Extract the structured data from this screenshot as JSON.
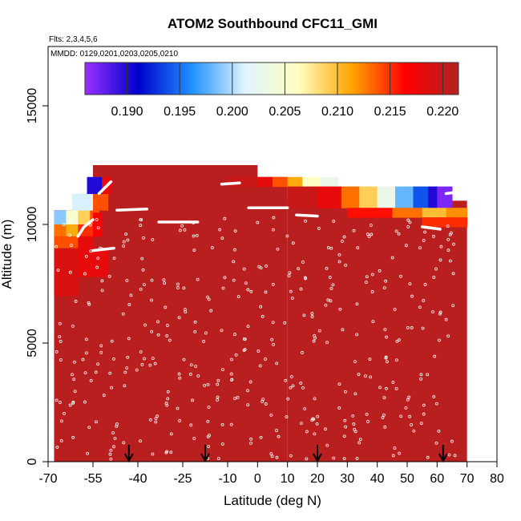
{
  "chart_data": {
    "type": "heatmap",
    "title": "ATOM2 Southbound CFC11_GMI",
    "flights_label": "Flts: 2,3,4,5,6",
    "dates_label": "MMDD: 0129,0201,0203,0205,0210",
    "xlabel": "Latitude (deg N)",
    "ylabel": "Altitude (m)",
    "xlim": [
      -70,
      80
    ],
    "ylim": [
      0,
      17500
    ],
    "x_ticks": [
      -70,
      -55,
      -40,
      -25,
      -10,
      0,
      10,
      20,
      30,
      40,
      50,
      60,
      70,
      80
    ],
    "y_ticks": [
      0,
      5000,
      10000,
      15000
    ],
    "colorbar": {
      "min": 0.186,
      "max": 0.2215,
      "ticks": [
        "0.190",
        "0.195",
        "0.200",
        "0.205",
        "0.210",
        "0.215",
        "0.220"
      ],
      "tick_values": [
        0.19,
        0.195,
        0.2,
        0.205,
        0.21,
        0.215,
        0.22
      ],
      "colors": [
        "#9b30ff",
        "#0000cd",
        "#1e90ff",
        "#e0f4ff",
        "#ffffc0",
        "#ffa500",
        "#ff0000",
        "#b22222"
      ]
    },
    "field_value": 0.221,
    "field_color": "#a31e1e",
    "regions": [
      {
        "x": [
          -55,
          0
        ],
        "alt": [
          0,
          12500
        ],
        "value": 0.221
      },
      {
        "x": [
          -10,
          10
        ],
        "alt": [
          0,
          12000
        ],
        "value": 0.221
      },
      {
        "x": [
          -68,
          -55
        ],
        "alt": [
          0,
          10600
        ],
        "value": 0.221
      },
      {
        "x": [
          10,
          70
        ],
        "alt": [
          0,
          11000
        ],
        "value": 0.221
      }
    ],
    "upper_gradient_segments": [
      {
        "x": [
          -10,
          0
        ],
        "alt": [
          11600,
          12000
        ],
        "value": 0.22
      },
      {
        "x": [
          0,
          5
        ],
        "alt": [
          11600,
          12000
        ],
        "value": 0.218
      },
      {
        "x": [
          5,
          10
        ],
        "alt": [
          11600,
          12000
        ],
        "value": 0.214
      },
      {
        "x": [
          10,
          15
        ],
        "alt": [
          11600,
          12000
        ],
        "value": 0.211
      },
      {
        "x": [
          15,
          21
        ],
        "alt": [
          11600,
          12000
        ],
        "value": 0.206
      },
      {
        "x": [
          21,
          27
        ],
        "alt": [
          11600,
          12000
        ],
        "value": 0.203
      },
      {
        "x": [
          10,
          20
        ],
        "alt": [
          10700,
          11600
        ],
        "value": 0.22
      },
      {
        "x": [
          20,
          28
        ],
        "alt": [
          10700,
          11600
        ],
        "value": 0.218
      },
      {
        "x": [
          28,
          34
        ],
        "alt": [
          10700,
          11600
        ],
        "value": 0.213
      },
      {
        "x": [
          34,
          40
        ],
        "alt": [
          10700,
          11600
        ],
        "value": 0.209
      },
      {
        "x": [
          40,
          46
        ],
        "alt": [
          10700,
          11600
        ],
        "value": 0.203
      },
      {
        "x": [
          46,
          52
        ],
        "alt": [
          10700,
          11600
        ],
        "value": 0.198
      },
      {
        "x": [
          52,
          57
        ],
        "alt": [
          10700,
          11600
        ],
        "value": 0.194
      },
      {
        "x": [
          57,
          60
        ],
        "alt": [
          10700,
          11600
        ],
        "value": 0.19
      },
      {
        "x": [
          60,
          65
        ],
        "alt": [
          10700,
          11600
        ],
        "value": 0.187
      },
      {
        "x": [
          30,
          45
        ],
        "alt": [
          10300,
          10700
        ],
        "value": 0.216
      },
      {
        "x": [
          45,
          55
        ],
        "alt": [
          10300,
          10700
        ],
        "value": 0.213
      },
      {
        "x": [
          55,
          63
        ],
        "alt": [
          10300,
          10700
        ],
        "value": 0.21
      },
      {
        "x": [
          63,
          70
        ],
        "alt": [
          10300,
          10700
        ],
        "value": 0.212
      },
      {
        "x": [
          55,
          70
        ],
        "alt": [
          9900,
          10300
        ],
        "value": 0.215
      },
      {
        "x": [
          -68,
          -64
        ],
        "alt": [
          10000,
          10600
        ],
        "value": 0.199
      },
      {
        "x": [
          -64,
          -60
        ],
        "alt": [
          10000,
          10600
        ],
        "value": 0.205
      },
      {
        "x": [
          -60,
          -56
        ],
        "alt": [
          10000,
          10600
        ],
        "value": 0.209
      },
      {
        "x": [
          -56,
          -53
        ],
        "alt": [
          10000,
          10600
        ],
        "value": 0.214
      },
      {
        "x": [
          -68,
          -64
        ],
        "alt": [
          9500,
          10000
        ],
        "value": 0.213
      },
      {
        "x": [
          -64,
          -60
        ],
        "alt": [
          9500,
          10000
        ],
        "value": 0.211
      },
      {
        "x": [
          -60,
          -55
        ],
        "alt": [
          9500,
          10000
        ],
        "value": 0.215
      },
      {
        "x": [
          -55,
          -52
        ],
        "alt": [
          9500,
          10500
        ],
        "value": 0.217
      },
      {
        "x": [
          -68,
          -60
        ],
        "alt": [
          9000,
          9500
        ],
        "value": 0.214
      },
      {
        "x": [
          -60,
          -55
        ],
        "alt": [
          9000,
          9500
        ],
        "value": 0.218
      },
      {
        "x": [
          -62,
          -55
        ],
        "alt": [
          10600,
          11300
        ],
        "value": 0.201
      },
      {
        "x": [
          -55,
          -50
        ],
        "alt": [
          10600,
          11300
        ],
        "value": 0.214
      },
      {
        "x": [
          -57,
          -52
        ],
        "alt": [
          11300,
          12000
        ],
        "value": 0.19
      },
      {
        "x": [
          -52,
          -49
        ],
        "alt": [
          11300,
          12000
        ],
        "value": 0.218
      },
      {
        "x": [
          -68,
          -60
        ],
        "alt": [
          7000,
          9000
        ],
        "value": 0.219
      },
      {
        "x": [
          -60,
          -50
        ],
        "alt": [
          7800,
          9000
        ],
        "value": 0.218
      }
    ],
    "arrow_latitudes": [
      -43,
      -17.5,
      20,
      62
    ]
  }
}
